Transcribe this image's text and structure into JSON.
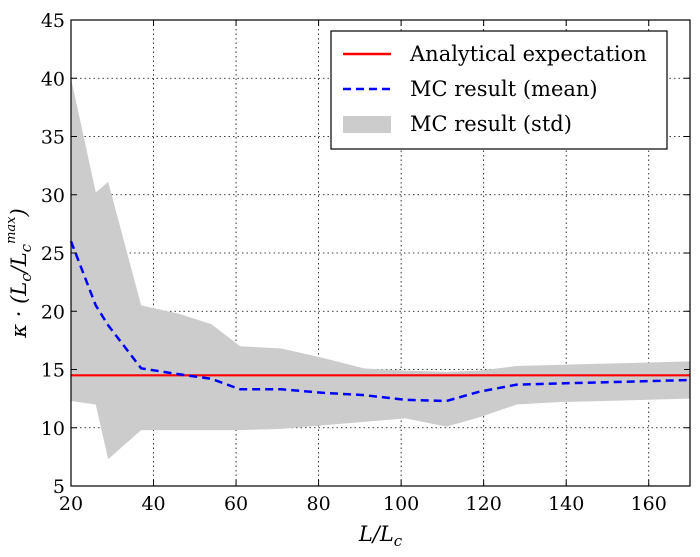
{
  "chart_data": {
    "type": "line",
    "title": "",
    "xlabel": "L/L_c",
    "xlabel_parts": {
      "base": "L/L",
      "sub": "c"
    },
    "ylabel": "κ · (L_c / L_c^max)",
    "ylabel_parts": {
      "main": "κ · (L",
      "sub": "c",
      "mid": "/L",
      "sub2": "c",
      "sup": "max",
      "close": ")"
    },
    "xlim": [
      20,
      170
    ],
    "ylim": [
      5,
      45
    ],
    "xticks": [
      20,
      40,
      60,
      80,
      100,
      120,
      140,
      160
    ],
    "yticks": [
      5,
      10,
      15,
      20,
      25,
      30,
      35,
      40,
      45
    ],
    "grid": true,
    "legend_position": "top-right",
    "series": [
      {
        "name": "Analytical expectation",
        "kind": "line",
        "color": "#ff0000",
        "style": "solid",
        "x": [
          20,
          170
        ],
        "y": [
          14.5,
          14.5
        ]
      },
      {
        "name": "MC result (mean)",
        "kind": "line",
        "color": "#0000ff",
        "style": "dashed",
        "x": [
          20,
          26,
          29,
          37,
          46,
          54,
          61,
          71,
          81,
          91,
          101,
          111,
          119,
          128,
          138,
          149,
          160,
          170
        ],
        "y": [
          26,
          20.5,
          18.8,
          15.1,
          14.6,
          14.2,
          13.3,
          13.3,
          13.0,
          12.8,
          12.4,
          12.3,
          13.1,
          13.7,
          13.8,
          13.9,
          14.0,
          14.1
        ]
      },
      {
        "name": "MC result (std)",
        "kind": "band",
        "color": "#cccccc",
        "x": [
          20,
          26,
          29,
          37,
          46,
          54,
          61,
          71,
          81,
          91,
          101,
          111,
          119,
          128,
          138,
          149,
          160,
          170
        ],
        "upper": [
          40.0,
          30.2,
          31.1,
          20.5,
          19.8,
          18.9,
          17.0,
          16.8,
          16.0,
          15.1,
          14.9,
          14.8,
          14.9,
          15.3,
          15.4,
          15.5,
          15.6,
          15.7
        ],
        "lower": [
          12.3,
          12.0,
          7.3,
          9.8,
          9.8,
          9.8,
          9.8,
          9.9,
          10.2,
          10.5,
          10.8,
          10.1,
          10.9,
          12.0,
          12.2,
          12.3,
          12.4,
          12.5
        ]
      }
    ]
  }
}
